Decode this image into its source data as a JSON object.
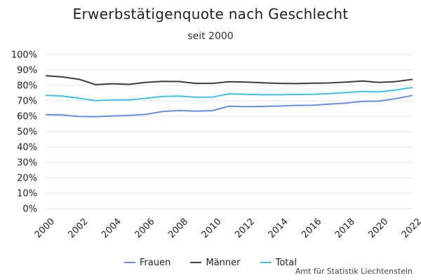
{
  "colors": {
    "frauen": "#6a8cf0",
    "maenner": "#3d3d45",
    "total": "#3ec1ec",
    "grid": "#e6e6e6"
  },
  "chart_data": {
    "type": "line",
    "title": "Erwerbstätigenquote nach Geschlecht",
    "subtitle": "seit 2000",
    "x": [
      2000,
      2001,
      2002,
      2003,
      2004,
      2005,
      2006,
      2007,
      2008,
      2009,
      2010,
      2011,
      2012,
      2013,
      2014,
      2015,
      2016,
      2017,
      2018,
      2019,
      2020,
      2021,
      2022
    ],
    "xticks": [
      "2000",
      "2002",
      "2004",
      "2006",
      "2008",
      "2010",
      "2012",
      "2014",
      "2016",
      "2018",
      "2020",
      "2022"
    ],
    "yticks": [
      "0%",
      "10%",
      "20%",
      "30%",
      "40%",
      "50%",
      "60%",
      "70%",
      "80%",
      "90%",
      "100%"
    ],
    "ylim": [
      0,
      100
    ],
    "grid": true,
    "legend_position": "bottom",
    "series": [
      {
        "name": "Frauen",
        "color_key": "frauen",
        "values": [
          61.0,
          60.8,
          59.8,
          59.7,
          60.1,
          60.5,
          61.2,
          63.0,
          63.7,
          63.3,
          63.6,
          66.5,
          66.2,
          66.3,
          66.6,
          67.0,
          67.1,
          67.8,
          68.5,
          69.6,
          69.8,
          71.4,
          73.5
        ]
      },
      {
        "name": "Männer",
        "color_key": "maenner",
        "values": [
          86.3,
          85.5,
          84.0,
          80.5,
          81.1,
          80.7,
          81.9,
          82.6,
          82.5,
          81.3,
          81.3,
          82.4,
          82.2,
          81.7,
          81.3,
          81.2,
          81.4,
          81.6,
          82.2,
          82.8,
          81.9,
          82.5,
          83.9
        ]
      },
      {
        "name": "Total",
        "color_key": "total",
        "values": [
          73.6,
          73.1,
          71.7,
          70.1,
          70.6,
          70.6,
          71.6,
          72.8,
          73.1,
          72.3,
          72.4,
          74.5,
          74.2,
          73.9,
          73.9,
          74.1,
          74.2,
          74.7,
          75.3,
          76.1,
          75.8,
          77.0,
          78.7
        ]
      }
    ]
  },
  "source": "Amt für Statistik Liechtenstein"
}
